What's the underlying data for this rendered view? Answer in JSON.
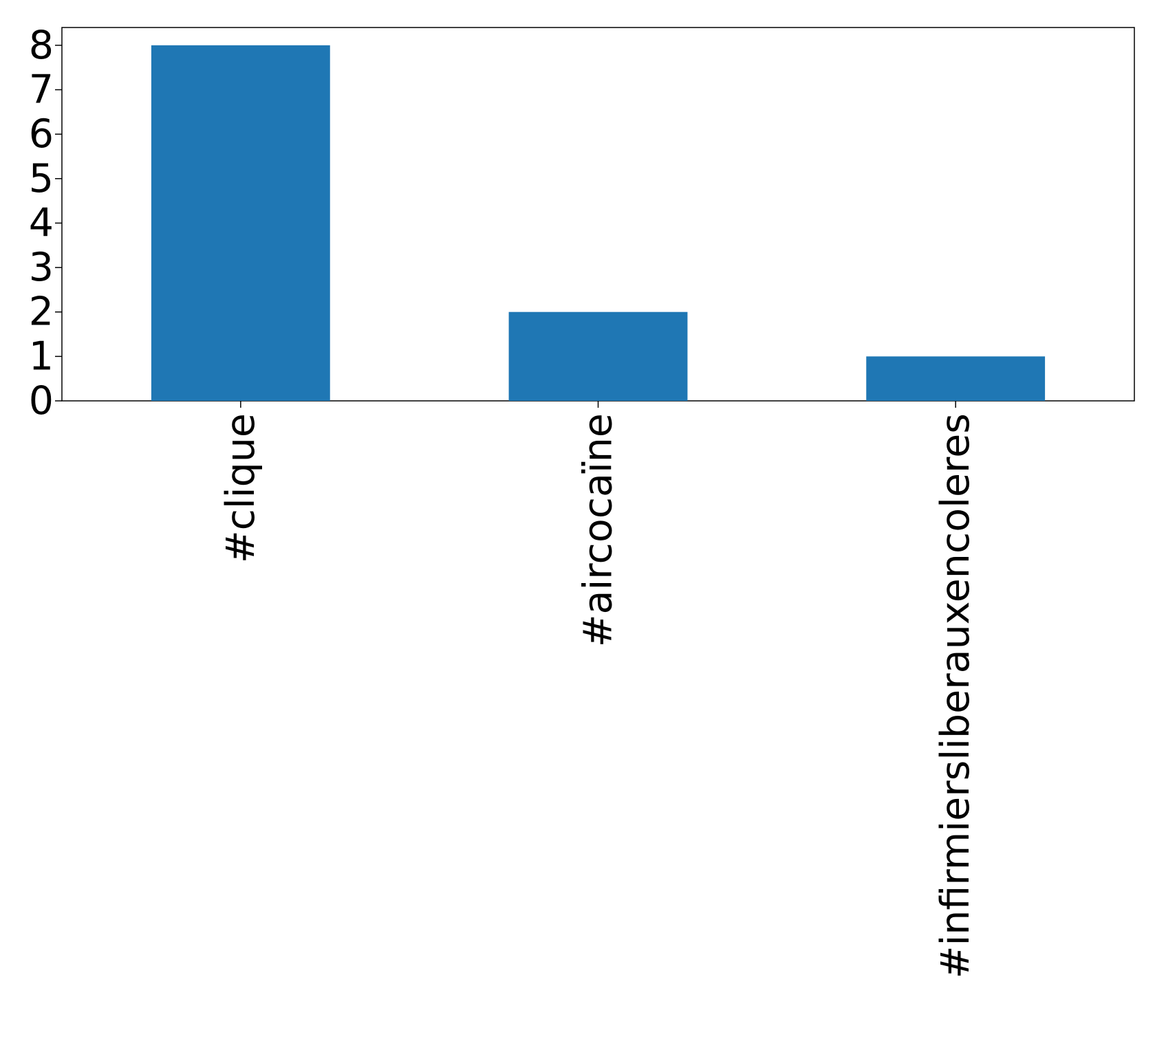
{
  "chart_data": {
    "type": "bar",
    "categories": [
      "#clique",
      "#aircocaïne",
      "#infirmiersliberauxencoleres"
    ],
    "values": [
      8,
      2,
      1
    ],
    "title": "",
    "xlabel": "",
    "ylabel": "",
    "ylim": [
      0,
      8.4
    ],
    "yticks": [
      "0",
      "1",
      "2",
      "3",
      "4",
      "5",
      "6",
      "7",
      "8"
    ],
    "grid": false,
    "legend": "none",
    "bar_color": "#1f77b4",
    "x_tick_rotation": 90
  }
}
